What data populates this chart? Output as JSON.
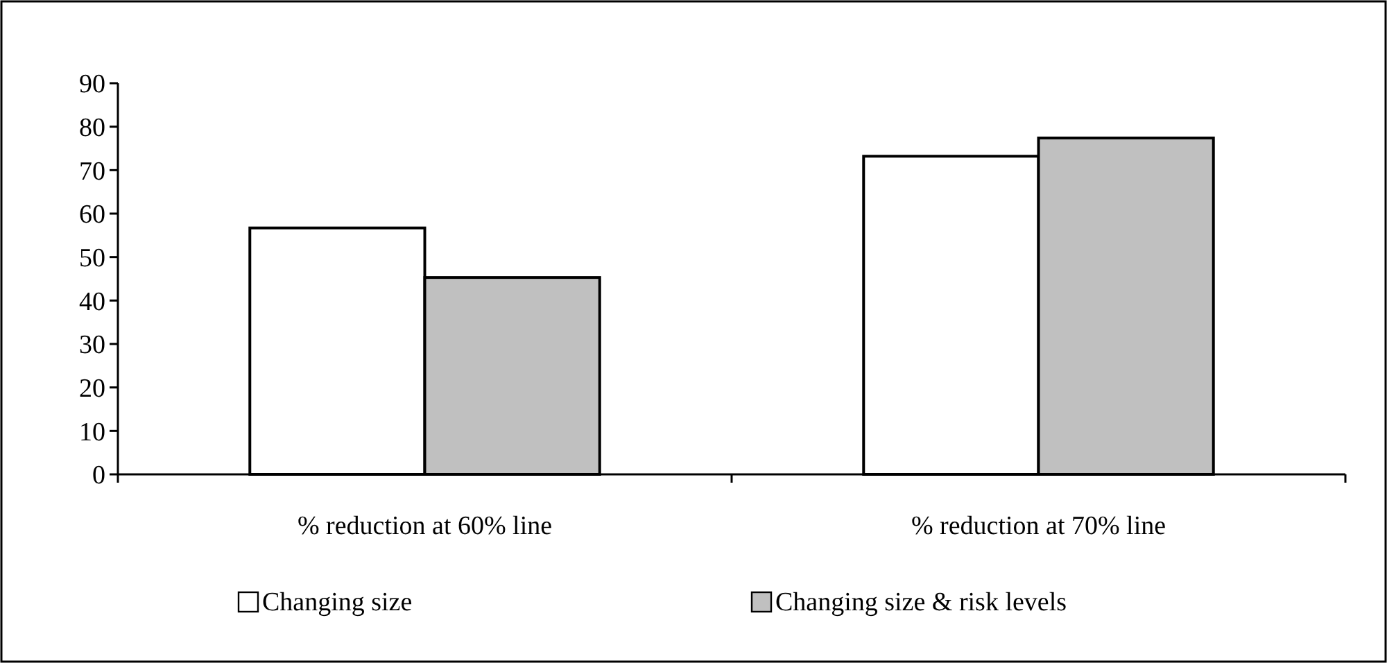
{
  "chart_data": {
    "type": "bar",
    "categories": [
      "% reduction at 60% line",
      "% reduction at 70% line"
    ],
    "series": [
      {
        "name": "Changing size",
        "color": "#ffffff",
        "values": [
          56.7,
          73.2
        ]
      },
      {
        "name": "Changing size & risk levels",
        "color": "#c0c0c0",
        "values": [
          45.3,
          77.4
        ]
      }
    ],
    "ylim": [
      0,
      90
    ],
    "yticks": [
      0,
      10,
      20,
      30,
      40,
      50,
      60,
      70,
      80,
      90
    ],
    "grid": false,
    "legend": "bottom"
  }
}
